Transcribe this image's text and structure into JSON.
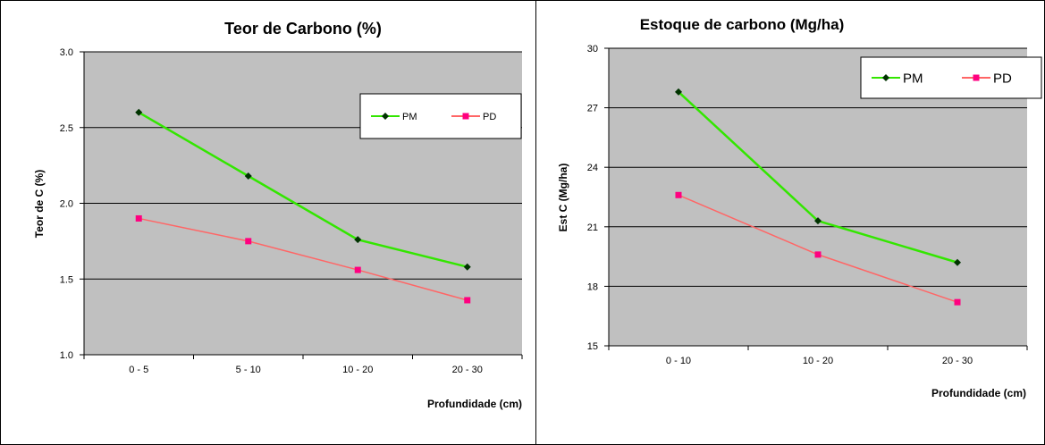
{
  "chart_data": [
    {
      "type": "line",
      "title": "Teor de Carbono (%)",
      "xlabel": "Profundidade (cm)",
      "ylabel": "Teor de C (%)",
      "ylim": [
        1.0,
        3.0
      ],
      "yticks": [
        "1.0",
        "1.5",
        "2.0",
        "2.5",
        "3.0"
      ],
      "categories": [
        "0 - 5",
        "5 - 10",
        "10 - 20",
        "20 - 30"
      ],
      "grid": true,
      "legend_position": "top-right",
      "series": [
        {
          "name": "PM",
          "color": "#33e600",
          "marker": "diamond",
          "marker_color": "#003300",
          "values": [
            2.6,
            2.18,
            1.76,
            1.58
          ]
        },
        {
          "name": "PD",
          "color": "#ff6666",
          "marker": "square",
          "marker_color": "#ff0080",
          "values": [
            1.9,
            1.75,
            1.56,
            1.36
          ]
        }
      ]
    },
    {
      "type": "line",
      "title": "Estoque de carbono (Mg/ha)",
      "xlabel": "Profundidade (cm)",
      "ylabel": "Est C (Mg/ha)",
      "ylim": [
        15,
        30
      ],
      "yticks": [
        "15",
        "18",
        "21",
        "24",
        "27",
        "30"
      ],
      "categories": [
        "0 - 10",
        "10 - 20",
        "20 - 30"
      ],
      "grid": true,
      "legend_position": "top-right",
      "series": [
        {
          "name": "PM",
          "color": "#33e600",
          "marker": "diamond",
          "marker_color": "#003300",
          "values": [
            27.8,
            21.3,
            19.2
          ]
        },
        {
          "name": "PD",
          "color": "#ff6666",
          "marker": "square",
          "marker_color": "#ff0080",
          "values": [
            22.6,
            19.6,
            17.2
          ]
        }
      ]
    }
  ]
}
